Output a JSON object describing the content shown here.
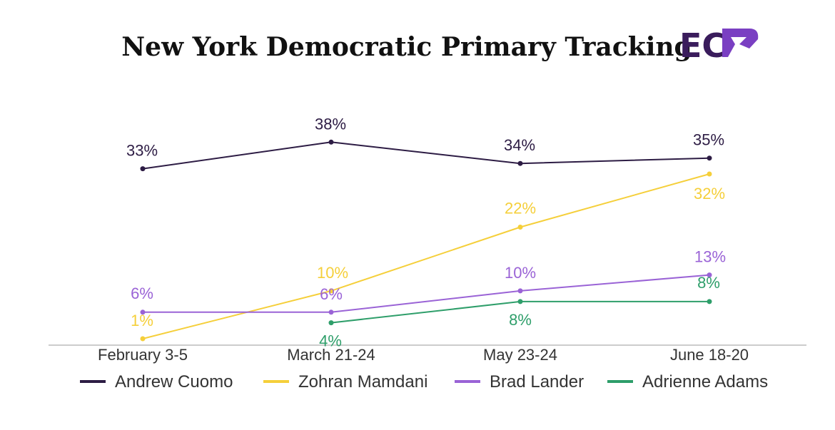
{
  "chart_data": {
    "type": "line",
    "title": "New York Democratic Primary Tracking",
    "logo_text": "EC",
    "categories": [
      "February 3-5",
      "March 21-24",
      "May 23-24",
      "June 18-20"
    ],
    "ylim": [
      0,
      40
    ],
    "xlabel": "",
    "ylabel": "",
    "grid": false,
    "legend_position": "bottom",
    "series": [
      {
        "name": "Andrew Cuomo",
        "color": "#2d1c44",
        "values": [
          33,
          38,
          34,
          35
        ],
        "labels": [
          "33%",
          "38%",
          "34%",
          "35%"
        ]
      },
      {
        "name": "Zohran Mamdani",
        "color": "#f5cf3a",
        "values": [
          1,
          10,
          22,
          32
        ],
        "labels": [
          "1%",
          "10%",
          "22%",
          "32%"
        ]
      },
      {
        "name": "Brad Lander",
        "color": "#9a63d6",
        "values": [
          6,
          6,
          10,
          13
        ],
        "labels": [
          "6%",
          "6%",
          "10%",
          "13%"
        ]
      },
      {
        "name": "Adrienne Adams",
        "color": "#2e9e6a",
        "values": [
          null,
          4,
          8,
          8
        ],
        "labels": [
          null,
          "4%",
          "8%",
          "8%"
        ]
      }
    ]
  },
  "colors": {
    "logo_dark": "#3a1c5c",
    "logo_accent": "#7a3fc2",
    "axis": "#bbbbbb"
  }
}
